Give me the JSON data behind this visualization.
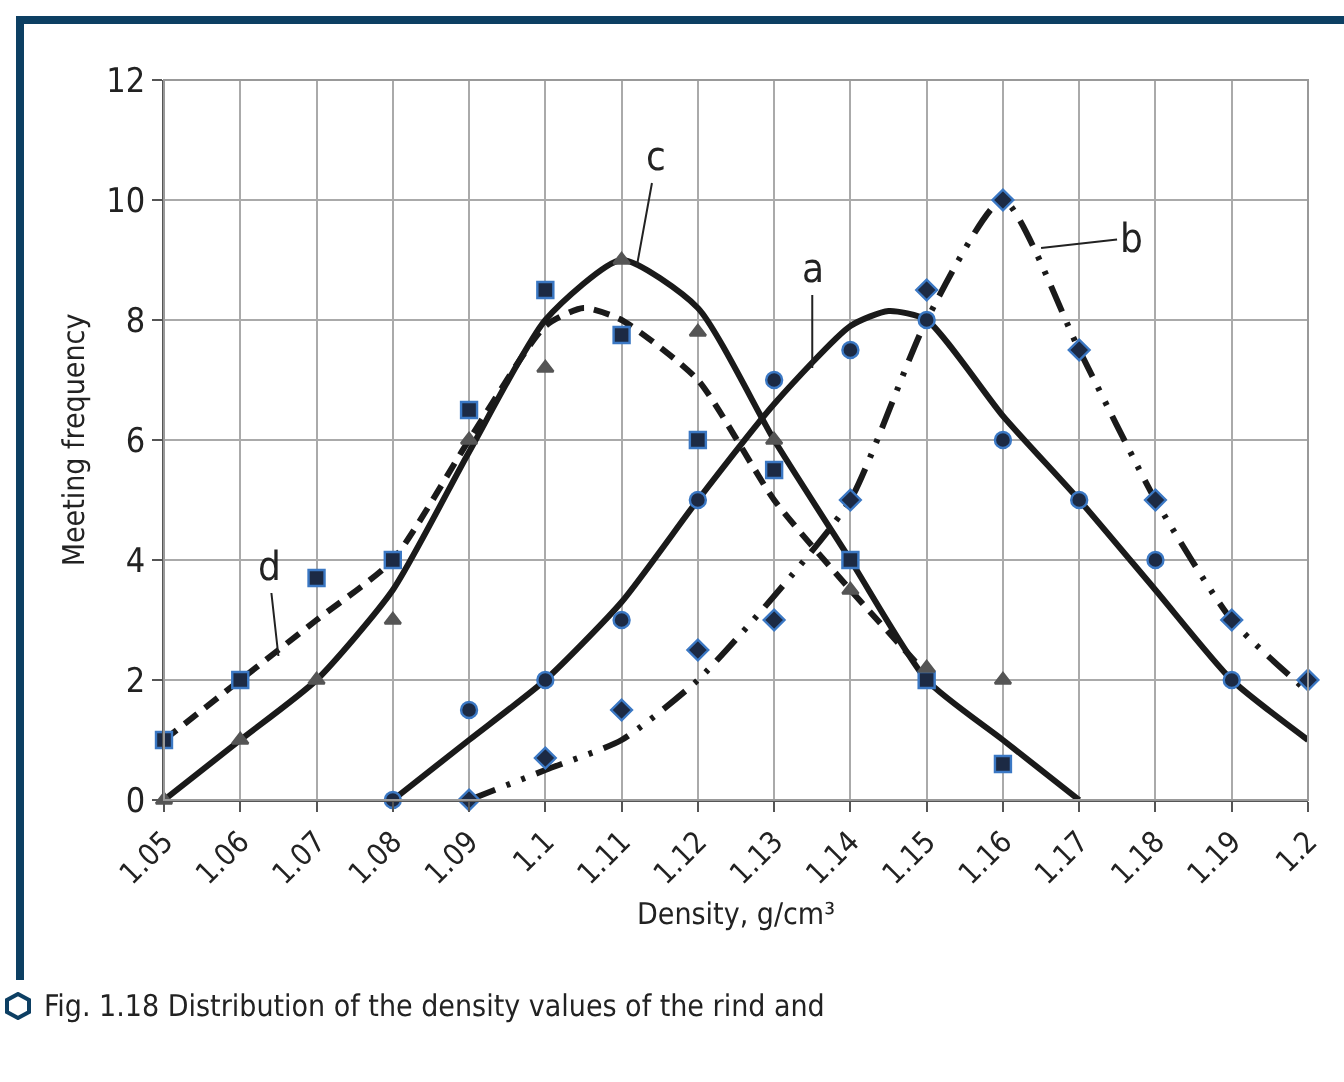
{
  "chart_data": {
    "type": "scatter",
    "xlabel": "Density, g/cm³",
    "ylabel": "Meeting frequency",
    "xlim": [
      1.05,
      1.2
    ],
    "xticks": [
      1.05,
      1.06,
      1.07,
      1.08,
      1.09,
      1.1,
      1.11,
      1.12,
      1.13,
      1.14,
      1.15,
      1.16,
      1.17,
      1.18,
      1.19,
      1.2
    ],
    "ylim": [
      0,
      12
    ],
    "yticks": [
      0,
      2,
      4,
      6,
      8,
      10,
      12
    ],
    "grid": true,
    "series": [
      {
        "type": "scatter",
        "marker": "square",
        "color": "#1c2a44",
        "x": [
          1.05,
          1.06,
          1.07,
          1.08,
          1.09,
          1.1,
          1.11,
          1.12,
          1.13,
          1.14,
          1.15,
          1.16
        ],
        "values": [
          1,
          2,
          3.7,
          4,
          6.5,
          8.5,
          7.75,
          6,
          5.5,
          4,
          2,
          0.6
        ]
      },
      {
        "type": "scatter",
        "marker": "triangle",
        "color": "#555555",
        "x": [
          1.05,
          1.06,
          1.07,
          1.08,
          1.09,
          1.1,
          1.11,
          1.12,
          1.13,
          1.14,
          1.15,
          1.16
        ],
        "values": [
          0,
          1,
          2,
          3,
          6,
          7.2,
          9,
          7.8,
          6,
          3.5,
          2.2,
          2
        ]
      },
      {
        "type": "scatter",
        "marker": "circle",
        "color": "#1c2a44",
        "x": [
          1.08,
          1.09,
          1.1,
          1.11,
          1.12,
          1.13,
          1.14,
          1.15,
          1.16,
          1.17,
          1.18,
          1.19
        ],
        "values": [
          0,
          1.5,
          2,
          3,
          5,
          7,
          7.5,
          8,
          6,
          5,
          4,
          2
        ]
      },
      {
        "type": "scatter",
        "marker": "diamond",
        "color": "#1c2a44",
        "x": [
          1.09,
          1.1,
          1.11,
          1.12,
          1.13,
          1.14,
          1.15,
          1.16,
          1.17,
          1.18,
          1.19,
          1.2
        ],
        "values": [
          0,
          0.7,
          1.5,
          2.5,
          3,
          5,
          8.5,
          10,
          7.5,
          5,
          3,
          2
        ]
      },
      {
        "type": "line",
        "line_style": "solid",
        "color": "#1a1a1a",
        "x": [
          1.05,
          1.06,
          1.07,
          1.08,
          1.09,
          1.1,
          1.11,
          1.12,
          1.13,
          1.14,
          1.15,
          1.16,
          1.17
        ],
        "values": [
          0,
          1,
          2,
          3.5,
          5.8,
          8,
          9,
          8.2,
          6,
          4,
          2,
          1,
          0
        ]
      },
      {
        "type": "line",
        "line_style": "dashed",
        "color": "#1a1a1a",
        "x": [
          1.05,
          1.06,
          1.07,
          1.08,
          1.09,
          1.1,
          1.105,
          1.11,
          1.12,
          1.13,
          1.14,
          1.15
        ],
        "values": [
          1,
          2,
          3,
          4,
          6,
          7.9,
          8.2,
          8,
          7,
          5,
          3.5,
          2.1
        ]
      },
      {
        "type": "line",
        "line_style": "solid",
        "color": "#1a1a1a",
        "x": [
          1.08,
          1.09,
          1.1,
          1.11,
          1.12,
          1.13,
          1.14,
          1.145,
          1.15,
          1.16,
          1.17,
          1.18,
          1.19,
          1.2
        ],
        "values": [
          0,
          1,
          2,
          3.3,
          5,
          6.6,
          7.9,
          8.15,
          8,
          6.4,
          5,
          3.5,
          2,
          1
        ]
      },
      {
        "type": "line",
        "line_style": "dashdot",
        "color": "#1a1a1a",
        "x": [
          1.09,
          1.1,
          1.11,
          1.12,
          1.13,
          1.14,
          1.15,
          1.16,
          1.17,
          1.18,
          1.19,
          1.2
        ],
        "values": [
          0,
          0.5,
          1,
          2,
          3.4,
          5,
          8,
          10,
          7.5,
          5,
          3,
          1.8
        ]
      }
    ],
    "annotations": [
      {
        "text": "a",
        "x": 1.135,
        "y": 7.2
      },
      {
        "text": "b",
        "x": 1.165,
        "y": 9.2
      },
      {
        "text": "c",
        "x": 1.112,
        "y": 8.9
      },
      {
        "text": "d",
        "x": 1.065,
        "y": 2.4
      },
      "Fig. 1.18  Distribution of the density values of the rind and"
    ]
  }
}
